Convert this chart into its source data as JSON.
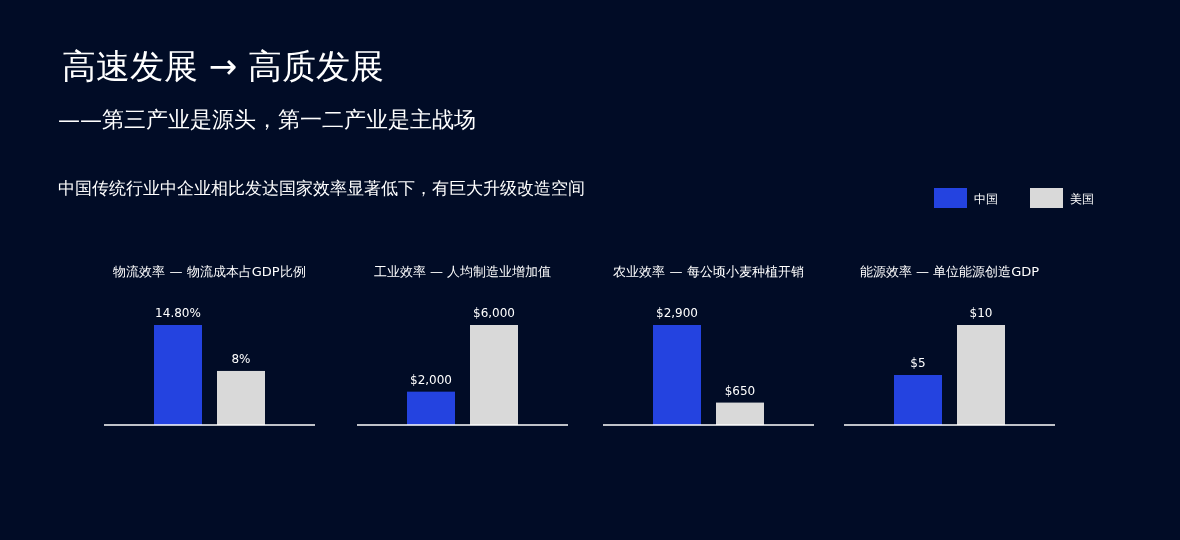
{
  "chart_data": [
    {
      "type": "bar",
      "title": "物流效率 — 物流成本占GDP比例",
      "categories": [
        null
      ],
      "annotations": [
        "高速发展 → 高质发展",
        "——第三产业是源头，第一二产业是主战场",
        "中国传统行业中企业相比发达国家效率显著低下，有巨大升级改造空间"
      ],
      "series": [
        {
          "color": "#2443e0",
          "values": [
            14.8
          ],
          "value_labels": [
            "14.80%"
          ]
        },
        {
          "color": "#d9d9d9",
          "values": [
            8
          ],
          "value_labels": [
            "8%"
          ]
        }
      ],
      "legend": false
    },
    {
      "type": "bar",
      "title": "工业效率 — 人均制造业增加值",
      "categories": [
        null
      ],
      "series": [
        {
          "color": "#2443e0",
          "values": [
            2000
          ],
          "value_labels": [
            "$2,000"
          ]
        },
        {
          "color": "#d9d9d9",
          "values": [
            6000
          ],
          "value_labels": [
            "$6,000"
          ]
        }
      ],
      "legend": false
    },
    {
      "type": "bar",
      "title": "农业效率 — 每公顷小麦种植开销",
      "categories": [
        null
      ],
      "series": [
        {
          "color": "#2443e0",
          "values": [
            2900
          ],
          "value_labels": [
            "$2,900"
          ]
        },
        {
          "color": "#d9d9d9",
          "values": [
            650
          ],
          "value_labels": [
            "$650"
          ]
        }
      ],
      "legend": false
    },
    {
      "type": "bar",
      "title": "能源效率 — 单位能源创造GDP",
      "categories": [
        null
      ],
      "series": [
        {
          "name": "中国",
          "color": "#2443e0",
          "values": [
            5
          ],
          "value_labels": [
            "$5"
          ]
        },
        {
          "name": "美国",
          "color": "#d9d9d9",
          "values": [
            10
          ],
          "value_labels": [
            "$10"
          ]
        }
      ],
      "legend": "top right"
    }
  ]
}
